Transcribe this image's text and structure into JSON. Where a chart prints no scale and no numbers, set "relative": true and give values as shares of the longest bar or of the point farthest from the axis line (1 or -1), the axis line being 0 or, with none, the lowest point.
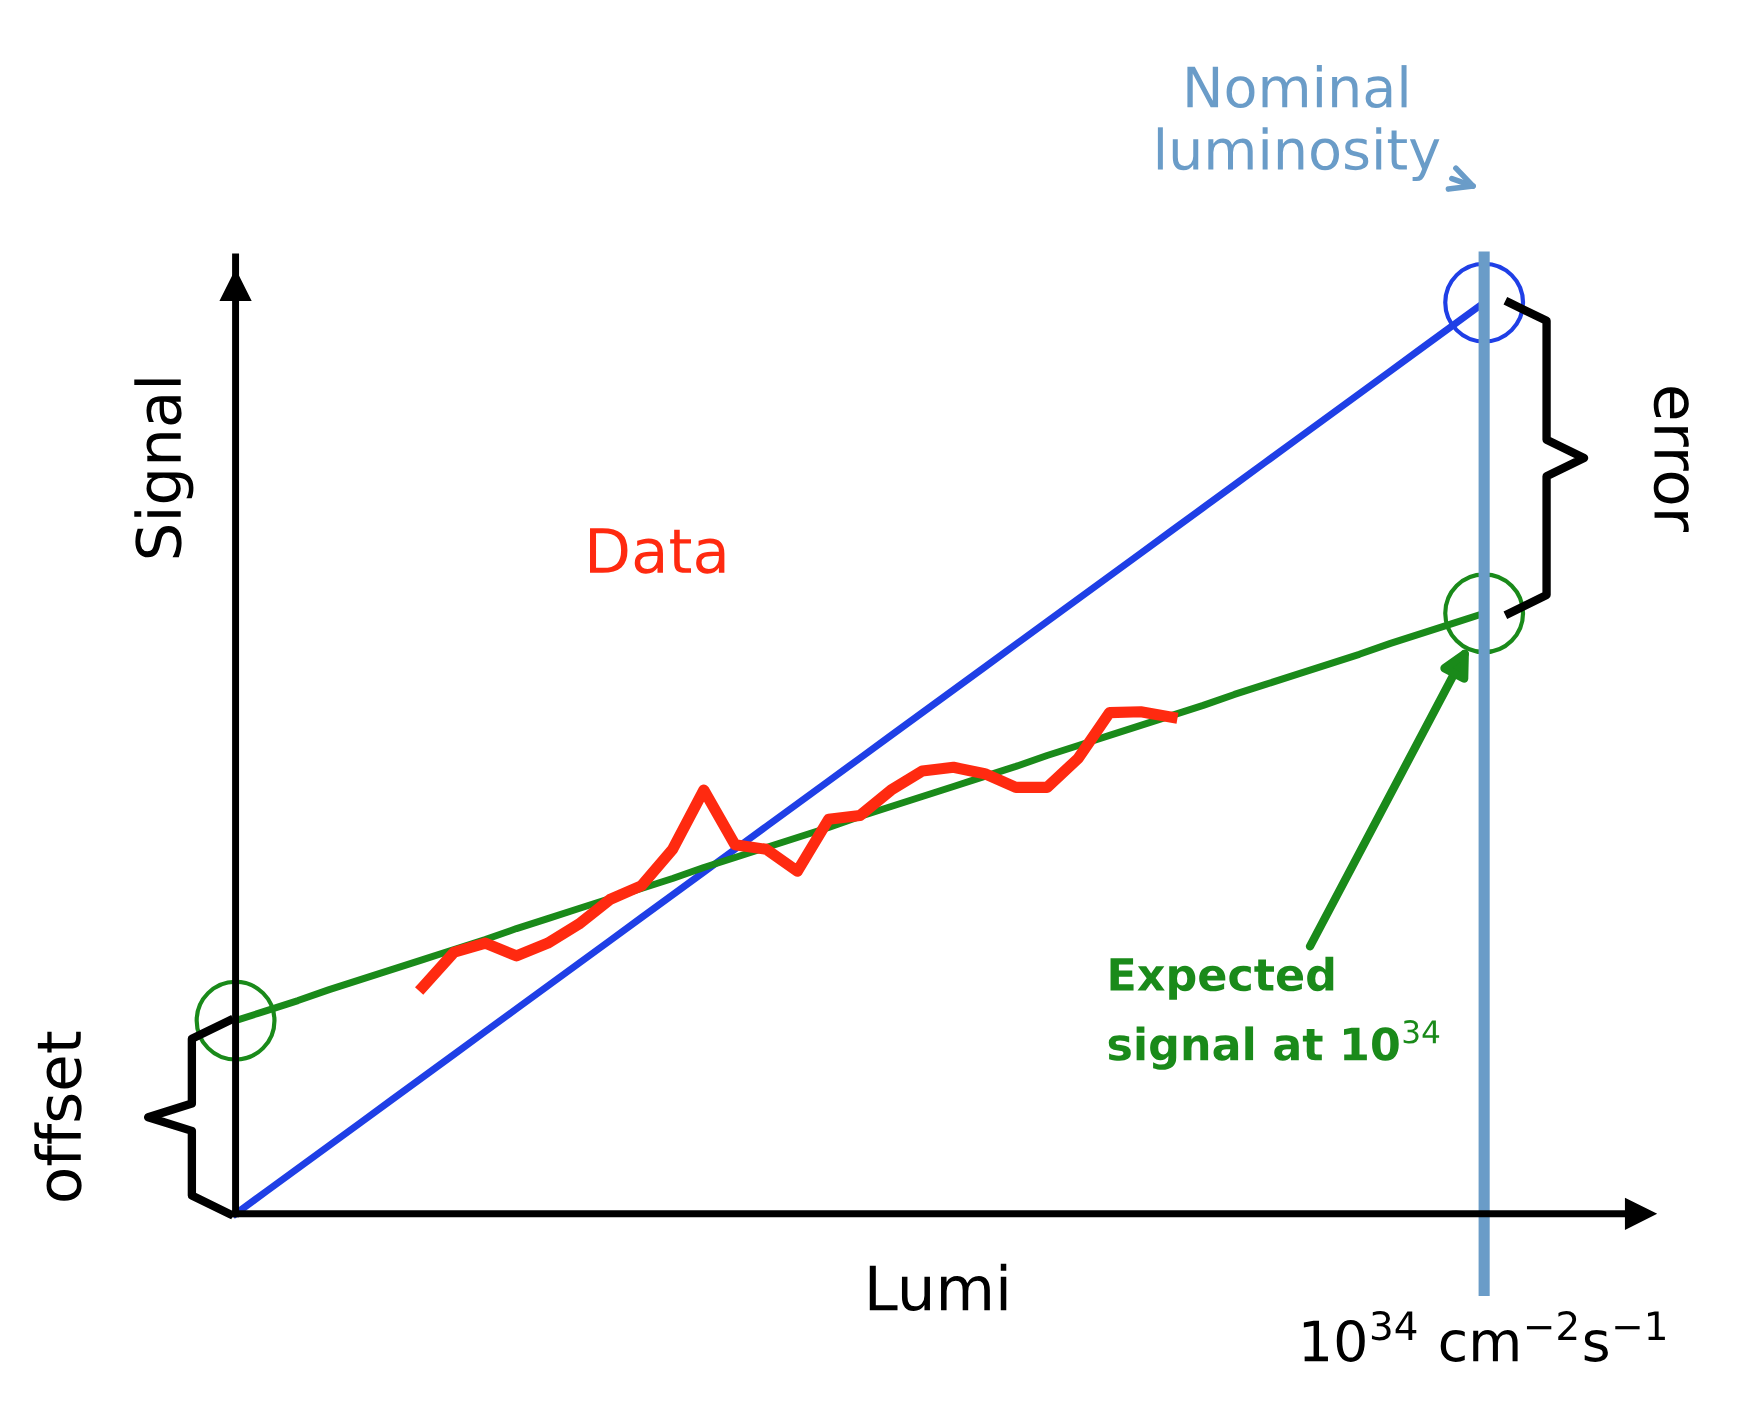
{
  "chart_data": {
    "type": "line",
    "relative": true,
    "xlabel": "Lumi",
    "ylabel": "Signal",
    "grid": false,
    "legend": false,
    "categories": [
      null,
      null,
      null,
      null,
      null,
      null,
      null,
      null,
      null,
      null,
      null,
      null,
      null,
      null,
      null,
      null,
      null,
      null,
      null,
      null,
      null,
      null,
      null,
      null,
      null,
      null,
      null,
      null,
      null,
      null,
      null,
      null,
      null,
      null,
      null,
      null,
      null,
      null,
      null,
      null,
      null
    ],
    "series": [
      {
        "color": "#1f3fe6",
        "values": [
          0,
          0.025,
          0.05,
          0.075,
          0.1,
          0.125,
          0.15,
          0.175,
          0.2,
          0.225,
          0.25,
          0.275,
          0.3,
          0.325,
          0.35,
          0.375,
          0.4,
          0.425,
          0.45,
          0.475,
          0.5,
          0.525,
          0.55,
          0.575,
          0.6,
          0.625,
          0.65,
          0.675,
          0.7,
          0.725,
          0.75,
          0.775,
          0.8,
          0.825,
          0.85,
          0.875,
          0.9,
          0.925,
          0.95,
          0.975,
          1
        ]
      },
      {
        "color": "#1a8a1a",
        "values": [
          0.212,
          0.223,
          0.234,
          0.246,
          0.257,
          0.268,
          0.279,
          0.29,
          0.301,
          0.313,
          0.324,
          0.335,
          0.346,
          0.357,
          0.368,
          0.38,
          0.391,
          0.402,
          0.413,
          0.424,
          0.436,
          0.447,
          0.458,
          0.469,
          0.48,
          0.491,
          0.503,
          0.514,
          0.525,
          0.536,
          0.547,
          0.558,
          0.57,
          0.581,
          0.592,
          0.603,
          0.614,
          0.626,
          0.637,
          0.648,
          0.659
        ]
      },
      {
        "color": "#ff2a10",
        "values": [
          null,
          null,
          null,
          null,
          null,
          null,
          0.249,
          0.287,
          0.297,
          0.283,
          0.297,
          0.318,
          0.345,
          0.36,
          0.4,
          0.465,
          0.405,
          0.4,
          0.376,
          0.433,
          0.437,
          0.465,
          0.486,
          0.49,
          0.483,
          0.468,
          0.468,
          0.5,
          0.55,
          0.551,
          0.545,
          null,
          null,
          null,
          null,
          null,
          null,
          null,
          null,
          null,
          null
        ]
      }
    ],
    "annotations": [
      "Data",
      "Expected signal at 10$^{34}$",
      "error",
      "offset",
      "Nominal luminosity",
      "10$^{34}$ cm$^{−2}$s$^{−1}$"
    ]
  }
}
